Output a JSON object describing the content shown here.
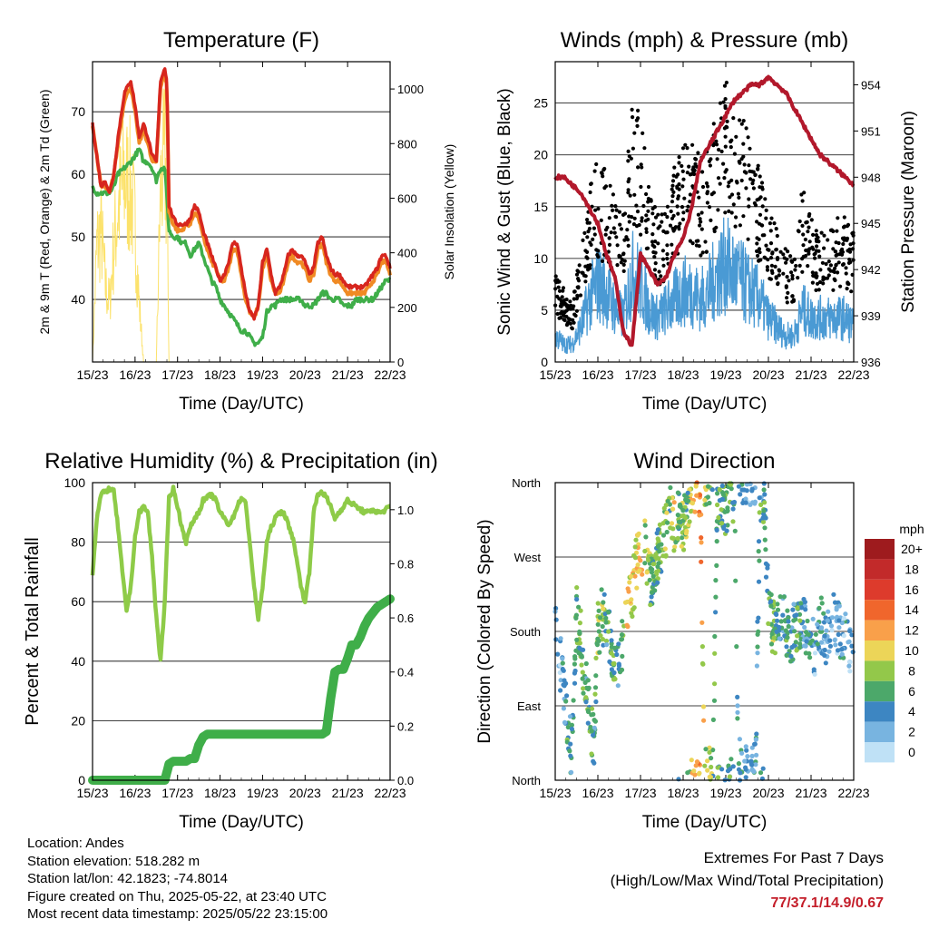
{
  "x_tick_labels": [
    "15/23",
    "16/23",
    "17/23",
    "18/23",
    "19/23",
    "20/23",
    "21/23",
    "22/23"
  ],
  "colors": {
    "temp_2m": "#d7261e",
    "temp_9m": "#f08a24",
    "dewpoint": "#3fae49",
    "solar": "#fce26b",
    "gust": "#000000",
    "sonic_wind": "#4a9ad4",
    "pressure": "#b2182b",
    "rh": "#8ecb48",
    "precip": "#3fae49"
  },
  "info": {
    "location": "Location: Andes",
    "elevation": "Station elevation: 518.282 m",
    "latlon": "Station lat/lon: 42.1823; -74.8014",
    "created": "Figure created on Thu, 2025-05-22, at 23:40 UTC",
    "recent": "Most recent data timestamp: 2025/05/22 23:15:00"
  },
  "extremes": {
    "title": "Extremes For Past 7 Days",
    "subtitle": "(High/Low/Max Wind/Total Precipitation)",
    "values": "77/37.1/14.9/0.67"
  },
  "chart_data": [
    {
      "type": "line",
      "title": "Temperature (F)",
      "xlabel": "Time (Day/UTC)",
      "ylabel": "2m & 9m T (Red, Orange) & 2m Td (Green)",
      "y2label": "Solar Insolation (Yellow)",
      "ylim": [
        30,
        78
      ],
      "yticks": [
        40,
        50,
        60,
        70
      ],
      "y2lim": [
        0,
        1100
      ],
      "y2ticks": [
        0,
        200,
        400,
        600,
        800,
        1000
      ],
      "x": [
        0,
        0.1,
        0.2,
        0.3,
        0.4,
        0.5,
        0.6,
        0.75,
        0.9,
        1.0,
        1.1,
        1.2,
        1.3,
        1.4,
        1.5,
        1.6,
        1.7,
        1.75,
        1.8,
        1.9,
        2.0,
        2.1,
        2.2,
        2.3,
        2.4,
        2.5,
        2.6,
        2.7,
        2.8,
        2.9,
        3.0,
        3.1,
        3.2,
        3.3,
        3.4,
        3.5,
        3.6,
        3.7,
        3.8,
        3.9,
        4.0,
        4.1,
        4.2,
        4.3,
        4.4,
        4.5,
        4.6,
        4.7,
        4.8,
        4.9,
        5.0,
        5.1,
        5.2,
        5.3,
        5.4,
        5.5,
        5.6,
        5.7,
        5.8,
        5.9,
        6.0,
        6.1,
        6.2,
        6.3,
        6.4,
        6.5,
        6.6,
        6.7,
        6.8,
        6.9,
        7.0
      ],
      "series": [
        {
          "name": "2m T",
          "values": [
            68,
            63,
            58,
            59,
            57,
            60,
            66,
            73,
            75,
            71,
            66,
            68,
            66,
            63,
            62,
            75,
            77,
            75,
            55,
            53,
            52,
            52,
            52,
            53,
            55,
            54,
            51,
            49,
            47,
            45,
            43,
            44,
            46,
            49,
            49,
            45,
            41,
            38,
            37,
            39,
            46,
            48,
            44,
            41,
            42,
            44,
            47,
            48,
            47,
            47,
            46,
            44,
            45,
            49,
            50,
            47,
            45,
            44,
            44,
            43,
            42,
            42,
            42,
            42,
            42,
            43,
            44,
            45,
            47,
            47,
            45
          ]
        },
        {
          "name": "9m T",
          "values": [
            68,
            63,
            58,
            58,
            57,
            60,
            65,
            72,
            74,
            70,
            65,
            67,
            65,
            62,
            62,
            74,
            76,
            74,
            54,
            52,
            51,
            51,
            52,
            52,
            54,
            53,
            50,
            48,
            46,
            45,
            43,
            43,
            45,
            48,
            48,
            44,
            40,
            38,
            37,
            39,
            45,
            47,
            43,
            41,
            41,
            43,
            46,
            47,
            46,
            46,
            45,
            43,
            44,
            48,
            49,
            46,
            44,
            43,
            43,
            42,
            41,
            41,
            41,
            41,
            41,
            42,
            43,
            44,
            46,
            46,
            44
          ]
        },
        {
          "name": "2m Td",
          "values": [
            58,
            57,
            57,
            57,
            57,
            58,
            60,
            61,
            62,
            63,
            64,
            62,
            62,
            61,
            59,
            61,
            61,
            56,
            51,
            50,
            50,
            49,
            49,
            47,
            48,
            49,
            47,
            45,
            43,
            42,
            40,
            39,
            38,
            37,
            36,
            35,
            35,
            34,
            33,
            33,
            34,
            38,
            39,
            39,
            40,
            40,
            40,
            40,
            40,
            40,
            39,
            39,
            39,
            40,
            41,
            41,
            40,
            40,
            40,
            39,
            39,
            39,
            40,
            40,
            40,
            40,
            40,
            41,
            42,
            43,
            43
          ]
        },
        {
          "name": "Solar",
          "axis": "y2",
          "values": [
            0,
            600,
            700,
            400,
            300,
            600,
            800,
            950,
            900,
            700,
            300,
            0,
            0,
            0,
            0,
            900,
            1050,
            800,
            0,
            0,
            0,
            0,
            0,
            0,
            0,
            0,
            0,
            0,
            0,
            0,
            0,
            0,
            0,
            0,
            0,
            0,
            0,
            0,
            0,
            0,
            0,
            0,
            0,
            0,
            0,
            0,
            0,
            0,
            0,
            0,
            0,
            0,
            0,
            0,
            0,
            0,
            0,
            0,
            0,
            0,
            0,
            0,
            0,
            0,
            0,
            0,
            0,
            0,
            0,
            0,
            0
          ]
        }
      ]
    },
    {
      "type": "scatter",
      "title": "Winds (mph) & Pressure (mb)",
      "xlabel": "Time (Day/UTC)",
      "ylabel": "Sonic Wind & Gust (Blue, Black)",
      "y2label": "Station Pressure (Maroon)",
      "ylim": [
        0,
        29
      ],
      "yticks": [
        0,
        5,
        10,
        15,
        20,
        25
      ],
      "y2lim": [
        936,
        955.5
      ],
      "y2ticks": [
        936,
        939,
        942,
        945,
        948,
        951,
        954
      ],
      "x": [
        0,
        0.2,
        0.4,
        0.6,
        0.8,
        1.0,
        1.2,
        1.4,
        1.6,
        1.8,
        2.0,
        2.2,
        2.4,
        2.6,
        2.8,
        3.0,
        3.2,
        3.4,
        3.6,
        3.8,
        4.0,
        4.2,
        4.4,
        4.6,
        4.8,
        5.0,
        5.2,
        5.4,
        5.6,
        5.8,
        6.0,
        6.2,
        6.4,
        6.6,
        6.8,
        7.0
      ],
      "series": [
        {
          "name": "Gust",
          "values": [
            6,
            5,
            4,
            8,
            12,
            14,
            13,
            11,
            10,
            18,
            17,
            12,
            10,
            11,
            14,
            15,
            16,
            14,
            15,
            18,
            20,
            18,
            17,
            15,
            13,
            11,
            9,
            8,
            7,
            12,
            10,
            9,
            9,
            10,
            10,
            9
          ]
        },
        {
          "name": "Sonic Wind",
          "values": [
            3,
            2,
            2,
            4,
            7,
            9,
            8,
            6,
            5,
            10,
            9,
            6,
            5,
            6,
            7,
            8,
            8,
            7,
            8,
            10,
            11,
            10,
            9,
            8,
            7,
            5,
            4,
            3,
            3,
            6,
            5,
            5,
            5,
            5,
            5,
            4
          ]
        },
        {
          "name": "Pressure",
          "axis": "y2",
          "values": [
            948,
            948,
            947.5,
            947,
            946,
            945,
            943,
            941.5,
            938,
            937,
            943,
            942,
            941,
            941.5,
            943,
            944,
            946,
            949,
            950,
            951,
            952,
            953,
            953.5,
            954,
            954,
            954.5,
            954,
            953.5,
            952.5,
            951.5,
            950.5,
            949.5,
            949,
            948.5,
            948,
            947.5
          ]
        }
      ]
    },
    {
      "type": "line",
      "title": "Relative Humidity (%) & Precipitation (in)",
      "xlabel": "Time (Day/UTC)",
      "ylabel": "Percent & Total Rainfall",
      "ylim": [
        0,
        100
      ],
      "yticks": [
        0,
        20,
        40,
        60,
        80,
        100
      ],
      "y2lim": [
        0,
        1.1
      ],
      "y2ticks": [
        0.0,
        0.2,
        0.4,
        0.6,
        0.8,
        1.0
      ],
      "x": [
        0,
        0.1,
        0.2,
        0.3,
        0.4,
        0.5,
        0.6,
        0.7,
        0.8,
        0.9,
        1.0,
        1.1,
        1.2,
        1.3,
        1.4,
        1.5,
        1.6,
        1.7,
        1.8,
        1.9,
        2.0,
        2.1,
        2.2,
        2.3,
        2.4,
        2.5,
        2.6,
        2.7,
        2.8,
        2.9,
        3.0,
        3.1,
        3.2,
        3.3,
        3.4,
        3.5,
        3.6,
        3.7,
        3.8,
        3.9,
        4.0,
        4.1,
        4.2,
        4.3,
        4.4,
        4.5,
        4.6,
        4.7,
        4.8,
        4.9,
        5.0,
        5.1,
        5.2,
        5.3,
        5.4,
        5.5,
        5.6,
        5.7,
        5.8,
        5.9,
        6.0,
        6.1,
        6.2,
        6.3,
        6.4,
        6.5,
        6.6,
        6.7,
        6.8,
        6.9,
        7.0
      ],
      "series": [
        {
          "name": "RH",
          "values": [
            69,
            88,
            96,
            97,
            98,
            97,
            85,
            70,
            57,
            65,
            82,
            90,
            92,
            90,
            75,
            55,
            40,
            60,
            95,
            98,
            92,
            85,
            80,
            85,
            88,
            90,
            94,
            95,
            96,
            94,
            90,
            88,
            86,
            88,
            92,
            95,
            93,
            80,
            65,
            54,
            65,
            80,
            85,
            88,
            90,
            90,
            86,
            82,
            75,
            65,
            60,
            70,
            90,
            96,
            97,
            95,
            92,
            88,
            90,
            92,
            94,
            93,
            92,
            91,
            90,
            90,
            91,
            90,
            90,
            91,
            92
          ]
        },
        {
          "name": "Precip",
          "axis": "y2",
          "values": [
            0,
            0,
            0,
            0,
            0,
            0,
            0,
            0,
            0,
            0,
            0,
            0,
            0,
            0,
            0,
            0,
            0,
            0,
            0.06,
            0.07,
            0.07,
            0.07,
            0.07,
            0.08,
            0.08,
            0.13,
            0.16,
            0.17,
            0.17,
            0.17,
            0.17,
            0.17,
            0.17,
            0.17,
            0.17,
            0.17,
            0.17,
            0.17,
            0.17,
            0.17,
            0.17,
            0.17,
            0.17,
            0.17,
            0.17,
            0.17,
            0.17,
            0.17,
            0.17,
            0.17,
            0.17,
            0.17,
            0.17,
            0.17,
            0.17,
            0.18,
            0.3,
            0.4,
            0.41,
            0.41,
            0.45,
            0.5,
            0.5,
            0.53,
            0.57,
            0.6,
            0.62,
            0.64,
            0.65,
            0.66,
            0.67
          ]
        }
      ]
    },
    {
      "type": "scatter",
      "title": "Wind Direction",
      "xlabel": "Time (Day/UTC)",
      "ylabel": "Direction (Colored By Speed)",
      "yticks": [
        "North",
        "East",
        "South",
        "West",
        "North"
      ],
      "colorbar": {
        "unit": "mph",
        "levels": [
          "20+",
          "18",
          "16",
          "14",
          "12",
          "10",
          "8",
          "6",
          "4",
          "2",
          "0"
        ],
        "colors": [
          "#9e1b1e",
          "#c22a2a",
          "#dd3b2c",
          "#f0662c",
          "#f9a04a",
          "#ecd558",
          "#93c84a",
          "#4ca86a",
          "#3d86c2",
          "#78b4e0",
          "#bfe1f6"
        ]
      },
      "x": [
        0.0,
        0.1,
        0.2,
        0.3,
        0.4,
        0.5,
        0.6,
        0.7,
        0.8,
        0.9,
        1.0,
        1.1,
        1.2,
        1.3,
        1.4,
        1.5,
        1.6,
        1.7,
        1.8,
        1.9,
        2.0,
        2.1,
        2.2,
        2.3,
        2.4,
        2.5,
        2.6,
        2.7,
        2.8,
        2.9,
        3.0,
        3.1,
        3.2,
        3.3,
        3.4,
        3.5,
        3.6,
        3.7,
        3.8,
        3.9,
        4.0,
        4.1,
        4.2,
        4.3,
        4.4,
        4.5,
        4.6,
        4.7,
        4.8,
        4.9,
        5.0,
        5.1,
        5.2,
        5.3,
        5.4,
        5.5,
        5.6,
        5.7,
        5.8,
        5.9,
        6.0,
        6.1,
        6.2,
        6.3,
        6.4,
        6.5,
        6.6,
        6.7,
        6.8,
        6.9,
        7.0
      ],
      "direction_deg": [
        180,
        150,
        110,
        60,
        30,
        200,
        170,
        120,
        90,
        40,
        180,
        200,
        190,
        160,
        140,
        150,
        170,
        210,
        220,
        260,
        270,
        280,
        250,
        240,
        270,
        290,
        300,
        320,
        310,
        330,
        300,
        340,
        350,
        350,
        355,
        0,
        10,
        5,
        350,
        340,
        330,
        355,
        345,
        20,
        10,
        5,
        5,
        10,
        350,
        340,
        200,
        190,
        180,
        200,
        190,
        170,
        180,
        190,
        200,
        180,
        170,
        160,
        190,
        180,
        170,
        200,
        190,
        180,
        170,
        160,
        180
      ],
      "speed": [
        3,
        2,
        4,
        5,
        4,
        6,
        7,
        5,
        6,
        4,
        7,
        8,
        5,
        6,
        6,
        4,
        8,
        11,
        10,
        9,
        12,
        8,
        7,
        6,
        7,
        6,
        8,
        7,
        9,
        6,
        8,
        7,
        10,
        11,
        12,
        9,
        8,
        7,
        6,
        5,
        7,
        5,
        6,
        4,
        4,
        3,
        3,
        3,
        5,
        6,
        6,
        7,
        5,
        4,
        5,
        4,
        5,
        6,
        4,
        4,
        4,
        3,
        4,
        3,
        3,
        2,
        3,
        4,
        3,
        2,
        3
      ]
    }
  ]
}
